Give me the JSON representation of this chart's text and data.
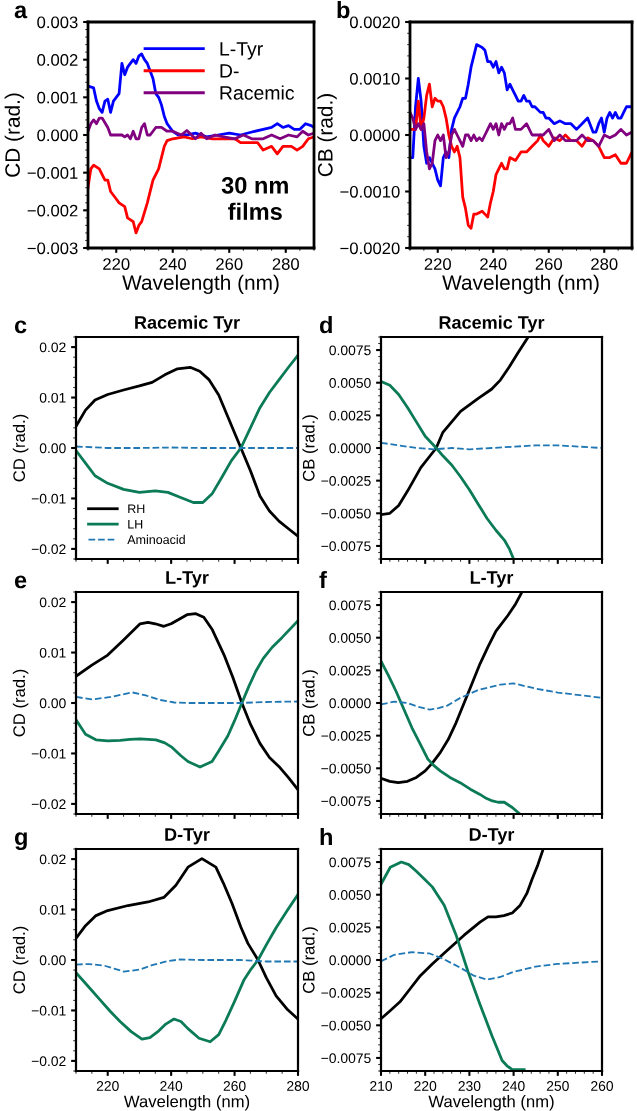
{
  "chart_data": [
    {
      "type": "line",
      "xlabel": "Wavelength (nm)",
      "ylabel": "CD (rad.)",
      "xlim": [
        210,
        290
      ],
      "ylim": [
        -0.003,
        0.003
      ],
      "xticks": [
        220,
        240,
        260,
        280
      ],
      "yticks": [
        {
          "value": -0.003,
          "label": "−0.003"
        },
        {
          "value": -0.002,
          "label": "−0.002"
        },
        {
          "value": -0.001,
          "label": "−0.001"
        },
        {
          "value": 0,
          "label": "0.000"
        },
        {
          "value": 0.001,
          "label": "0.001"
        },
        {
          "value": 0.002,
          "label": "0.002"
        },
        {
          "value": 0.003,
          "label": "0.003"
        }
      ],
      "legend": "top right",
      "line_style": "solid",
      "annotations": [
        "a",
        "30 nm\nfilms"
      ],
      "series": [
        {
          "name": "L-Tyr",
          "color": "#0000ff",
          "x": [
            210,
            212,
            213,
            214,
            215,
            216,
            217,
            218,
            219,
            220,
            221,
            222,
            223,
            224,
            225,
            226,
            227,
            228,
            229,
            230,
            231,
            232,
            233,
            234,
            235,
            236,
            237,
            238,
            239,
            240,
            242,
            245,
            248,
            252,
            256,
            260,
            264,
            268,
            272,
            275,
            277,
            279,
            281,
            283,
            285,
            287,
            289,
            290
          ],
          "values": [
            0.0013,
            0.00125,
            0.0009,
            0.0007,
            0.0006,
            0.0009,
            0.00095,
            0.0006,
            0.0009,
            0.001,
            0.0011,
            0.0019,
            0.0016,
            0.0018,
            0.0019,
            0.002,
            0.0019,
            0.0021,
            0.00215,
            0.002,
            0.0019,
            0.0017,
            0.0015,
            0.0011,
            0.001,
            0.0008,
            0.0005,
            0.0003,
            0.0002,
            0.0001,
            0.0,
            0.0,
            5e-05,
            -5e-05,
            0.0,
            5e-05,
            0.0,
            8e-05,
            0.00015,
            0.0002,
            0.0003,
            0.0002,
            0.00025,
            0.00015,
            0.00015,
            0.0003,
            0.00025,
            0.0002
          ]
        },
        {
          "name": "D-",
          "color": "#ff0000",
          "x": [
            210,
            211,
            212,
            214,
            216,
            217,
            218,
            220,
            221,
            223,
            224,
            226,
            227,
            228,
            229,
            231,
            233,
            235,
            236,
            237,
            238,
            240,
            244,
            247,
            250,
            254,
            258,
            262,
            264,
            266,
            270,
            272,
            275,
            277,
            279,
            282,
            284,
            286,
            288,
            290
          ],
          "values": [
            -0.0014,
            -0.0009,
            -0.0008,
            -0.0009,
            -0.0012,
            -0.0012,
            -0.0015,
            -0.0017,
            -0.0018,
            -0.0019,
            -0.0022,
            -0.0023,
            -0.0026,
            -0.0024,
            -0.0023,
            -0.0018,
            -0.0012,
            -0.0009,
            -0.0006,
            -0.0003,
            -0.00015,
            -0.0001,
            -5e-05,
            -0.0001,
            -5e-05,
            -0.0001,
            -0.0001,
            -0.0001,
            -0.0002,
            -0.0002,
            -0.0002,
            -0.0004,
            -0.0003,
            -0.0005,
            -0.0003,
            -0.0003,
            -0.0004,
            -0.0003,
            -0.0001,
            -5e-05
          ]
        },
        {
          "name": "Racemic",
          "color": "#800080",
          "x": [
            210,
            211,
            212,
            213,
            214,
            215,
            217,
            218,
            220,
            222,
            223,
            224,
            225,
            226,
            227,
            228,
            229,
            230,
            231,
            232,
            234,
            236,
            238,
            240,
            243,
            245,
            248,
            250,
            252,
            255,
            258,
            262,
            265,
            268,
            272,
            275,
            278,
            281,
            284,
            286,
            288,
            290
          ],
          "values": [
            0.0001,
            0.0003,
            0.0004,
            0.0003,
            0.00045,
            0.00045,
            0.0002,
            0.0,
            0.0,
            0.0,
            -5e-05,
            0.0,
            -0.0001,
            0.0001,
            -0.0001,
            -0.0001,
            0.0002,
            0.0003,
            0.0,
            0.0,
            0.0002,
            0.0002,
            0.0001,
            0.0001,
            0.0,
            0.00012,
            -0.0001,
            5e-05,
            -0.0001,
            0.0,
            -5e-05,
            -0.0001,
            0.0,
            -0.0001,
            -0.0001,
            0.0,
            -0.0001,
            0.0,
            -5e-05,
            0.0001,
            0.0,
            5e-05
          ]
        }
      ]
    },
    {
      "type": "line",
      "xlabel": "Wavelength (nm)",
      "ylabel": "CB (rad.)",
      "xlim": [
        210,
        290
      ],
      "ylim": [
        -0.002,
        0.002
      ],
      "xticks": [
        220,
        240,
        260,
        280
      ],
      "yticks": [
        {
          "value": -0.002,
          "label": "−0.0020"
        },
        {
          "value": -0.001,
          "label": "−0.0010"
        },
        {
          "value": 0,
          "label": "0.0000"
        },
        {
          "value": 0.001,
          "label": "0.0010"
        },
        {
          "value": 0.002,
          "label": "0.0020"
        }
      ],
      "line_style": "solid",
      "annotations": [
        "b"
      ],
      "series": [
        {
          "color": "#0000ff",
          "x": [
            210,
            211,
            212,
            213,
            214,
            215,
            216,
            217,
            218,
            219,
            220,
            221,
            222,
            223,
            224,
            225,
            226,
            228,
            229,
            230,
            231,
            232,
            233,
            234,
            236,
            237,
            238,
            239,
            240,
            241,
            242,
            243,
            244,
            245,
            246,
            247,
            248,
            249,
            250,
            251,
            252,
            253,
            254,
            255,
            257,
            258,
            259,
            260,
            262,
            264,
            266,
            268,
            270,
            272,
            274,
            276,
            277,
            278,
            279,
            280,
            281,
            282,
            283,
            284,
            285,
            286,
            287,
            288,
            290
          ],
          "values": [
            -0.0004,
            -0.0004,
            0.0005,
            0.001,
            0.0006,
            -0.0002,
            -0.0005,
            -0.0004,
            -0.0005,
            -0.0006,
            -0.0008,
            -0.0009,
            -0.0004,
            -0.0003,
            -0.0004,
            0.0001,
            0.0003,
            0.0005,
            0.00065,
            0.00065,
            0.0009,
            0.0012,
            0.0014,
            0.0016,
            0.00155,
            0.0015,
            0.0013,
            0.0013,
            0.0012,
            0.0013,
            0.0011,
            0.0012,
            0.0011,
            0.0008,
            0.0009,
            0.0008,
            0.0007,
            0.0006,
            0.0006,
            0.0007,
            0.0006,
            0.0006,
            0.0005,
            0.0005,
            0.0004,
            0.0004,
            0.0003,
            0.0003,
            0.0002,
            0.00025,
            0.0002,
            0.0002,
            0.0001,
            0.0002,
            0.0003,
            5e-05,
            5e-05,
            0.0002,
            0.0003,
            5e-05,
            0.0003,
            0.0004,
            0.0003,
            0.0004,
            0.0003,
            0.0003,
            0.0004,
            0.0005,
            0.0005
          ]
        },
        {
          "color": "#ff0000",
          "x": [
            210,
            211,
            212,
            213,
            214,
            215,
            216,
            217,
            218,
            219,
            220,
            221,
            222,
            223,
            224,
            225,
            226,
            227,
            228,
            229,
            230,
            231,
            232,
            233,
            234,
            236,
            237,
            238,
            239,
            240,
            241,
            242,
            243,
            244,
            245,
            246,
            248,
            250,
            251,
            252,
            254,
            256,
            257,
            258,
            260,
            262,
            264,
            266,
            268,
            270,
            272,
            274,
            276,
            278,
            280,
            282,
            284,
            286,
            288,
            290
          ],
          "values": [
            0.0001,
            0.0001,
            0.0001,
            0.0006,
            0.0001,
            0.0003,
            0.0007,
            0.0009,
            0.0005,
            0.00065,
            0.0006,
            0.0006,
            0.0005,
            0.0003,
            0.0,
            -0.0002,
            -0.0003,
            -0.0002,
            -0.0004,
            -0.0011,
            -0.0013,
            -0.0016,
            -0.00165,
            -0.0014,
            -0.0014,
            -0.00135,
            -0.0014,
            -0.00145,
            -0.0012,
            -0.001,
            -0.0007,
            -0.0006,
            -0.0005,
            -0.0006,
            -0.0006,
            -0.0004,
            -0.00045,
            -0.0003,
            -0.0003,
            -0.0003,
            -0.0002,
            -0.0001,
            0.0,
            -0.0001,
            -0.0002,
            -5e-05,
            -0.0001,
            0.0,
            -0.0001,
            -0.0001,
            -0.0002,
            -5e-05,
            -0.0001,
            -0.0002,
            -0.0004,
            -0.0004,
            -0.00035,
            -0.0005,
            -0.0005,
            -0.0003
          ]
        },
        {
          "color": "#800080",
          "x": [
            210,
            211,
            212,
            213,
            214,
            215,
            216,
            217,
            218,
            219,
            220,
            221,
            222,
            223,
            224,
            225,
            226,
            227,
            228,
            229,
            230,
            231,
            232,
            233,
            234,
            235,
            236,
            237,
            238,
            239,
            240,
            241,
            242,
            243,
            244,
            245,
            246,
            247,
            248,
            250,
            252,
            254,
            256,
            258,
            260,
            262,
            264,
            266,
            268,
            270,
            272,
            274,
            276,
            278,
            280,
            282,
            284,
            286,
            288,
            290
          ],
          "values": [
            0.0004,
            0.0003,
            0.0001,
            0.0002,
            0.0001,
            0.0002,
            -0.0003,
            -0.0006,
            -0.0005,
            -0.0001,
            0.0,
            -0.0001,
            0.0,
            -0.0004,
            -0.0003,
            0.0,
            0.0001,
            0.0,
            -0.0001,
            -0.0002,
            0.0,
            0.0,
            -0.0001,
            0.0,
            -0.0001,
            -5e-05,
            -0.0001,
            0.0,
            0.0001,
            0.0002,
            0.0001,
            0.0002,
            0.0,
            0.0002,
            0.0001,
            0.0002,
            0.0002,
            0.0003,
            0.0001,
            0.0001,
            0.0002,
            0.0,
            0.0,
            0.0,
            0.0001,
            -0.0001,
            0.0,
            -0.0001,
            -0.0001,
            -0.0001,
            0.0,
            -0.0001,
            -0.0001,
            -0.0002,
            0.0,
            -5e-05,
            0.0,
            0.0001,
            0.0,
            5e-05
          ]
        }
      ]
    },
    {
      "type": "line",
      "title": "Racemic Tyr",
      "ylabel": "CD (rad.)",
      "xlim": [
        210,
        280
      ],
      "ylim": [
        -0.022,
        0.022
      ],
      "tick_labels": "y",
      "xticks": [
        220,
        240,
        260,
        280
      ],
      "yticks": [
        {
          "value": -0.02,
          "label": "−0.02"
        },
        {
          "value": -0.01,
          "label": "−0.01"
        },
        {
          "value": 0,
          "label": "0.00"
        },
        {
          "value": 0.01,
          "label": "0.01"
        },
        {
          "value": 0.02,
          "label": "0.02"
        }
      ],
      "legend": "bottom left",
      "annotations": [
        "c"
      ],
      "series": [
        {
          "name": "RH",
          "color": "#000000",
          "line_style": "solid",
          "x": [
            210,
            213,
            216,
            220,
            225,
            230,
            234,
            238,
            242,
            246,
            249,
            252,
            255,
            258,
            262,
            265,
            268,
            271,
            274,
            277,
            280
          ],
          "values": [
            0.0043,
            0.0075,
            0.0095,
            0.0106,
            0.0115,
            0.0123,
            0.013,
            0.0145,
            0.0157,
            0.016,
            0.0152,
            0.0135,
            0.0105,
            0.006,
            0.0,
            -0.0045,
            -0.0095,
            -0.0125,
            -0.0145,
            -0.016,
            -0.0175
          ]
        },
        {
          "name": "LH",
          "color": "#0b7a57",
          "line_style": "solid",
          "x": [
            210,
            213,
            216,
            220,
            225,
            230,
            235,
            239,
            243,
            247,
            250,
            253,
            256,
            259,
            262,
            265,
            268,
            271,
            274,
            277,
            280
          ],
          "values": [
            -0.0005,
            -0.003,
            -0.0055,
            -0.007,
            -0.0082,
            -0.0088,
            -0.0085,
            -0.0088,
            -0.0098,
            -0.0108,
            -0.0108,
            -0.009,
            -0.0058,
            -0.0025,
            0.0,
            0.004,
            0.008,
            0.011,
            0.0135,
            0.016,
            0.0184
          ]
        },
        {
          "name": "Aminoacid",
          "color": "#1f77b4",
          "line_style": "dashed",
          "x": [
            210,
            220,
            230,
            240,
            250,
            262,
            270,
            280
          ],
          "values": [
            0.0003,
            0.0,
            0.0,
            0.0001,
            0.0,
            0.0,
            0.0,
            0.0
          ]
        }
      ]
    },
    {
      "type": "line",
      "title": "Racemic Tyr",
      "ylabel": "CB (rad.)",
      "xlim": [
        210,
        260
      ],
      "ylim": [
        -0.0085,
        0.0085
      ],
      "tick_labels": "y",
      "xticks": [
        210,
        220,
        230,
        240,
        250,
        260
      ],
      "yticks": [
        {
          "value": -0.0075,
          "label": "−0.0075"
        },
        {
          "value": -0.005,
          "label": "−0.0050"
        },
        {
          "value": -0.0025,
          "label": "−0.0025"
        },
        {
          "value": 0,
          "label": "0.0000"
        },
        {
          "value": 0.0025,
          "label": "0.0025"
        },
        {
          "value": 0.005,
          "label": "0.0050"
        },
        {
          "value": 0.0075,
          "label": "0.0075"
        }
      ],
      "annotations": [
        "d"
      ],
      "series": [
        {
          "color": "#000000",
          "line_style": "solid",
          "x": [
            210,
            212,
            214,
            216,
            219,
            222.5,
            224,
            228,
            232,
            235,
            237,
            239,
            241,
            243.3
          ],
          "values": [
            -0.0051,
            -0.005,
            -0.0044,
            -0.0033,
            -0.0015,
            0.0,
            0.0012,
            0.0028,
            0.0038,
            0.0045,
            0.0052,
            0.0062,
            0.0073,
            0.0085
          ]
        },
        {
          "color": "#0b7a57",
          "line_style": "solid",
          "x": [
            210,
            212,
            214,
            216,
            218,
            220,
            222.5,
            224,
            226,
            228,
            230,
            232,
            234,
            236,
            238,
            239,
            240
          ],
          "values": [
            0.0051,
            0.0048,
            0.0041,
            0.0031,
            0.002,
            0.0009,
            0.0,
            -0.0006,
            -0.0013,
            -0.0022,
            -0.0032,
            -0.0043,
            -0.0054,
            -0.0063,
            -0.0071,
            -0.0077,
            -0.0085
          ]
        },
        {
          "color": "#1f77b4",
          "line_style": "dashed",
          "x": [
            210,
            214,
            218,
            222,
            226,
            230,
            235,
            240,
            245,
            250,
            255,
            260
          ],
          "values": [
            0.0004,
            0.0002,
            0.0,
            -0.0001,
            0.0,
            -0.0001,
            0.0,
            0.0001,
            0.0002,
            0.0002,
            0.0001,
            0.0
          ]
        }
      ]
    },
    {
      "type": "line",
      "title": "L-Tyr",
      "ylabel": "CD (rad.)",
      "xlim": [
        210,
        280
      ],
      "ylim": [
        -0.022,
        0.022
      ],
      "tick_labels": "y",
      "xticks": [
        220,
        240,
        260,
        280
      ],
      "yticks": [
        {
          "value": -0.02,
          "label": "−0.02"
        },
        {
          "value": -0.01,
          "label": "−0.01"
        },
        {
          "value": 0,
          "label": "0.00"
        },
        {
          "value": 0.01,
          "label": "0.01"
        },
        {
          "value": 0.02,
          "label": "0.02"
        }
      ],
      "annotations": [
        "e"
      ],
      "series": [
        {
          "color": "#000000",
          "line_style": "solid",
          "x": [
            210,
            215,
            220,
            225,
            230.2,
            232.7,
            235,
            237.7,
            240,
            242.8,
            245,
            247.8,
            250.3,
            253,
            256.7,
            259.5,
            262.3,
            265,
            268,
            271,
            274.3,
            277,
            280
          ],
          "values": [
            0.0053,
            0.0075,
            0.0095,
            0.0125,
            0.0157,
            0.016,
            0.0157,
            0.0152,
            0.0157,
            0.0167,
            0.0175,
            0.0177,
            0.017,
            0.0145,
            0.0095,
            0.005,
            0.0,
            -0.0042,
            -0.008,
            -0.0108,
            -0.0128,
            -0.0148,
            -0.0172
          ]
        },
        {
          "color": "#0b7a57",
          "line_style": "solid",
          "x": [
            210,
            213,
            216.3,
            220,
            223.9,
            227,
            230.2,
            235.2,
            238,
            240.3,
            243,
            245.3,
            249.1,
            252.9,
            255,
            257.9,
            260,
            262.3,
            264.5,
            266.7,
            269,
            271.8,
            275,
            280
          ],
          "values": [
            -0.0033,
            -0.0062,
            -0.0073,
            -0.0075,
            -0.0074,
            -0.0072,
            -0.0071,
            -0.0073,
            -0.0079,
            -0.0088,
            -0.0104,
            -0.0116,
            -0.0127,
            -0.0116,
            -0.0095,
            -0.0065,
            -0.0035,
            0.0,
            0.0033,
            0.0063,
            0.0088,
            0.011,
            0.013,
            0.0163
          ]
        },
        {
          "color": "#1f77b4",
          "line_style": "dashed",
          "x": [
            210,
            215,
            221,
            227.7,
            232,
            236.5,
            241,
            245.3,
            253,
            261.7,
            270,
            280
          ],
          "values": [
            0.0012,
            0.0007,
            0.0012,
            0.0021,
            0.0015,
            0.0006,
            0.0001,
            0.0,
            0.0,
            0.0,
            0.0002,
            0.0003
          ]
        }
      ]
    },
    {
      "type": "line",
      "title": "L-Tyr",
      "ylabel": "CB (rad.)",
      "xlim": [
        210,
        260
      ],
      "ylim": [
        -0.0085,
        0.0085
      ],
      "tick_labels": "y",
      "xticks": [
        210,
        220,
        230,
        240,
        250,
        260
      ],
      "yticks": [
        {
          "value": -0.0075,
          "label": "−0.0075"
        },
        {
          "value": -0.005,
          "label": "−0.0050"
        },
        {
          "value": -0.0025,
          "label": "−0.0025"
        },
        {
          "value": 0,
          "label": "0.0000"
        },
        {
          "value": 0.0025,
          "label": "0.0025"
        },
        {
          "value": 0.005,
          "label": "0.0050"
        },
        {
          "value": 0.0075,
          "label": "0.0075"
        }
      ],
      "annotations": [
        "f"
      ],
      "series": [
        {
          "color": "#000000",
          "line_style": "solid",
          "x": [
            210.3,
            212,
            213.9,
            216,
            218,
            220,
            221.6,
            223.4,
            225.2,
            227,
            228.8,
            230.6,
            232.4,
            234.2,
            236,
            238.7,
            240.3,
            241.9
          ],
          "values": [
            -0.0058,
            -0.006,
            -0.0061,
            -0.006,
            -0.0057,
            -0.0052,
            -0.0046,
            -0.0038,
            -0.0028,
            -0.0015,
            0.0,
            0.0015,
            0.003,
            0.0043,
            0.0055,
            0.0067,
            0.0075,
            0.0085
          ]
        },
        {
          "color": "#0b7a57",
          "line_style": "solid",
          "x": [
            210,
            211.7,
            213.4,
            215.2,
            217,
            218.8,
            220.6,
            222,
            223.4,
            225.6,
            227.9,
            230.2,
            232.4,
            233.8,
            235.2,
            236.5,
            237.9,
            239.7,
            241.4
          ],
          "values": [
            0.0032,
            0.0021,
            0.0009,
            -0.0005,
            -0.0019,
            -0.0031,
            -0.0043,
            -0.0048,
            -0.0052,
            -0.0057,
            -0.0061,
            -0.0066,
            -0.007,
            -0.0073,
            -0.0075,
            -0.0076,
            -0.0076,
            -0.008,
            -0.0085
          ]
        },
        {
          "color": "#1f77b4",
          "line_style": "dashed",
          "x": [
            210,
            213,
            216,
            218.5,
            221,
            223,
            225,
            228,
            232,
            237,
            240,
            245,
            250,
            255,
            260
          ],
          "values": [
            -0.0001,
            0.0001,
            0.0,
            -0.0003,
            -0.0005,
            -0.0004,
            -0.0002,
            0.0004,
            0.001,
            0.0014,
            0.0015,
            0.0011,
            0.0008,
            0.0006,
            0.0004
          ]
        }
      ]
    },
    {
      "type": "line",
      "title": "D-Tyr",
      "xlabel": "Wavelength (nm)",
      "ylabel": "CD (rad.)",
      "xlim": [
        210,
        280
      ],
      "ylim": [
        -0.022,
        0.022
      ],
      "xticks": [
        220,
        240,
        260,
        280
      ],
      "yticks": [
        {
          "value": -0.02,
          "label": "−0.02"
        },
        {
          "value": -0.01,
          "label": "−0.01"
        },
        {
          "value": 0,
          "label": "0.00"
        },
        {
          "value": 0.01,
          "label": "0.01"
        },
        {
          "value": 0.02,
          "label": "0.02"
        }
      ],
      "annotations": [
        "g"
      ],
      "series": [
        {
          "color": "#000000",
          "line_style": "solid",
          "x": [
            210,
            213,
            216.3,
            220,
            226.4,
            232.7,
            237.7,
            241.5,
            245.3,
            249.7,
            254.1,
            256.5,
            259.2,
            262,
            264.2,
            267.4,
            270,
            273.1,
            276.5,
            280
          ],
          "values": [
            0.0043,
            0.0068,
            0.0088,
            0.0098,
            0.0108,
            0.0115,
            0.0124,
            0.0148,
            0.0184,
            0.0201,
            0.0184,
            0.0152,
            0.0112,
            0.0065,
            0.0033,
            0.0,
            -0.0035,
            -0.0071,
            -0.0097,
            -0.0117
          ]
        },
        {
          "color": "#0b7a57",
          "line_style": "solid",
          "x": [
            210,
            213.8,
            217.6,
            220.7,
            223.9,
            227.4,
            230.8,
            233.3,
            235.8,
            238.3,
            240.9,
            243.1,
            245.3,
            248.8,
            252.3,
            255,
            257.3,
            260,
            263,
            265.2,
            267.4,
            270,
            273.1,
            276.5,
            280
          ],
          "values": [
            -0.0025,
            -0.0052,
            -0.0079,
            -0.0101,
            -0.0122,
            -0.0142,
            -0.0157,
            -0.0154,
            -0.0142,
            -0.0127,
            -0.0117,
            -0.0122,
            -0.0136,
            -0.0155,
            -0.0162,
            -0.0148,
            -0.0119,
            -0.0082,
            -0.0039,
            -0.0018,
            0.0,
            0.003,
            0.0064,
            0.0097,
            0.013
          ]
        },
        {
          "color": "#1f77b4",
          "line_style": "dashed",
          "x": [
            210,
            214,
            218.8,
            222,
            225.1,
            230.2,
            234,
            239,
            242.8,
            250,
            261.7,
            270,
            280
          ],
          "values": [
            -0.0009,
            -0.0008,
            -0.0011,
            -0.0017,
            -0.0023,
            -0.0019,
            -0.001,
            -0.0002,
            0.0001,
            0.0,
            0.0,
            -0.0003,
            -0.0003
          ]
        }
      ]
    },
    {
      "type": "line",
      "title": "D-Tyr",
      "xlabel": "Wavelength (nm)",
      "ylabel": "CB (rad.)",
      "xlim": [
        210,
        260
      ],
      "ylim": [
        -0.0085,
        0.0085
      ],
      "xticks": [
        210,
        220,
        230,
        240,
        250,
        260
      ],
      "yticks": [
        {
          "value": -0.0075,
          "label": "−0.0075"
        },
        {
          "value": -0.005,
          "label": "−0.0050"
        },
        {
          "value": -0.0025,
          "label": "−0.0025"
        },
        {
          "value": 0,
          "label": "0.0000"
        },
        {
          "value": 0.0025,
          "label": "0.0025"
        },
        {
          "value": 0.005,
          "label": "0.0050"
        },
        {
          "value": 0.0075,
          "label": "0.0075"
        }
      ],
      "annotations": [
        "h"
      ],
      "series": [
        {
          "color": "#000000",
          "line_style": "solid",
          "x": [
            210,
            212,
            214.3,
            216.6,
            218.9,
            221.6,
            225.2,
            228.8,
            232.4,
            234.2,
            236,
            237.8,
            239.7,
            241.5,
            243,
            244.2,
            245.5,
            246.7
          ],
          "values": [
            -0.0045,
            -0.0039,
            -0.0032,
            -0.0022,
            -0.0012,
            -0.0003,
            0.0008,
            0.0019,
            0.0029,
            0.0033,
            0.0033,
            0.0034,
            0.0036,
            0.0042,
            0.0051,
            0.0062,
            0.0073,
            0.0085
          ]
        },
        {
          "color": "#0b7a57",
          "line_style": "solid",
          "x": [
            210,
            212.1,
            214.6,
            216.3,
            218,
            219.8,
            221.6,
            224.3,
            227,
            229.7,
            232.4,
            235.1,
            237.4,
            238.5,
            239.7,
            241,
            242.4
          ],
          "values": [
            0.0058,
            0.0071,
            0.0075,
            0.0073,
            0.0068,
            0.0062,
            0.0056,
            0.0042,
            0.0019,
            -0.0009,
            -0.0034,
            -0.0058,
            -0.0077,
            -0.0081,
            -0.0084,
            -0.0084,
            -0.0084
          ]
        },
        {
          "color": "#1f77b4",
          "line_style": "dashed",
          "x": [
            210,
            213,
            217,
            221,
            224,
            228,
            231,
            234,
            237,
            240,
            245,
            250,
            255,
            260
          ],
          "values": [
            -0.0001,
            0.0004,
            0.0006,
            0.0005,
            0.0001,
            -0.0006,
            -0.0012,
            -0.0015,
            -0.0013,
            -0.0009,
            -0.0005,
            -0.0003,
            -0.0002,
            -0.0001
          ]
        }
      ]
    }
  ]
}
